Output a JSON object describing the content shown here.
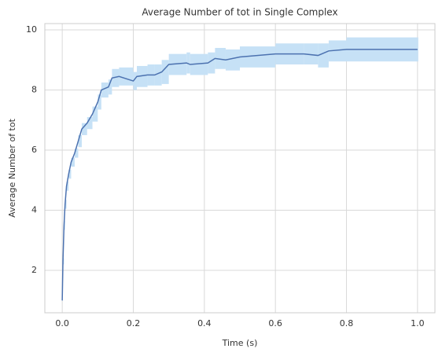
{
  "chart_data": {
    "type": "line",
    "title": "Average Number of tot in Single Complex",
    "xlabel": "Time (s)",
    "ylabel": "Average Number of tot",
    "x": [
      0,
      0.002,
      0.005,
      0.008,
      0.012,
      0.018,
      0.025,
      0.035,
      0.045,
      0.055,
      0.07,
      0.085,
      0.1,
      0.11,
      0.13,
      0.14,
      0.16,
      0.2,
      0.21,
      0.24,
      0.26,
      0.28,
      0.3,
      0.35,
      0.36,
      0.41,
      0.43,
      0.46,
      0.5,
      0.6,
      0.68,
      0.72,
      0.75,
      0.8,
      1.0
    ],
    "values": [
      1.0,
      2.3,
      3.5,
      4.2,
      4.8,
      5.2,
      5.6,
      5.9,
      6.3,
      6.7,
      6.9,
      7.2,
      7.6,
      8.0,
      8.1,
      8.4,
      8.45,
      8.3,
      8.45,
      8.5,
      8.5,
      8.6,
      8.85,
      8.9,
      8.85,
      8.9,
      9.05,
      9.0,
      9.1,
      9.2,
      9.2,
      9.15,
      9.3,
      9.35,
      9.35
    ],
    "y_lower": [
      1.0,
      2.2,
      3.35,
      4.05,
      4.65,
      5.05,
      5.45,
      5.75,
      6.1,
      6.5,
      6.7,
      6.95,
      7.35,
      7.75,
      7.85,
      8.1,
      8.15,
      8.0,
      8.1,
      8.15,
      8.15,
      8.2,
      8.5,
      8.55,
      8.5,
      8.55,
      8.7,
      8.65,
      8.75,
      8.85,
      8.85,
      8.75,
      8.95,
      8.95,
      8.95
    ],
    "y_upper": [
      1.0,
      2.4,
      3.65,
      4.35,
      4.95,
      5.35,
      5.75,
      6.05,
      6.5,
      6.9,
      7.1,
      7.45,
      7.85,
      8.25,
      8.35,
      8.7,
      8.75,
      8.6,
      8.8,
      8.85,
      8.85,
      9.0,
      9.2,
      9.25,
      9.2,
      9.25,
      9.4,
      9.35,
      9.45,
      9.55,
      9.55,
      9.55,
      9.65,
      9.75,
      9.75
    ],
    "color": "#4c72b0",
    "band_color": "#c6e1f6",
    "xlim": [
      -0.049,
      1.049
    ],
    "xticks": [
      {
        "value": 0,
        "label": "0.0"
      },
      {
        "value": 0.2,
        "label": "0.2"
      },
      {
        "value": 0.4,
        "label": "0.4"
      },
      {
        "value": 0.6,
        "label": "0.6"
      },
      {
        "value": 0.8,
        "label": "0.8"
      },
      {
        "value": 1.0,
        "label": "1.0"
      }
    ],
    "ylim": [
      0.59,
      10.21
    ],
    "yticks": [
      2,
      4,
      6,
      8,
      10
    ],
    "grid": true
  }
}
